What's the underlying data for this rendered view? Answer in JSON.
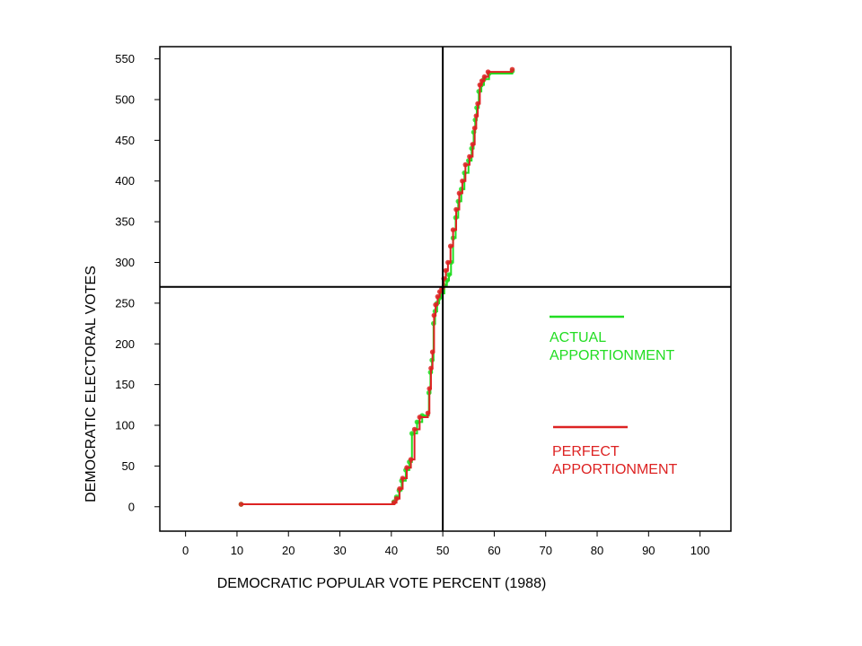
{
  "chart_data": {
    "type": "line",
    "title": "",
    "xlabel": "DEMOCRATIC POPULAR VOTE PERCENT  (1988)",
    "ylabel": "DEMOCRATIC ELECTORAL VOTES",
    "xlim": [
      -5,
      106
    ],
    "ylim": [
      -30,
      565
    ],
    "x_ticks": [
      0,
      10,
      20,
      30,
      40,
      50,
      60,
      70,
      80,
      90,
      100
    ],
    "y_ticks": [
      0,
      50,
      100,
      150,
      200,
      250,
      300,
      350,
      400,
      450,
      500,
      550
    ],
    "grid": false,
    "reference_lines": {
      "x": 50,
      "y": 270
    },
    "legend_position": "right",
    "series": [
      {
        "name": "ACTUAL APPORTIONMENT",
        "color": "#22dd22",
        "x": [
          10.8,
          40.5,
          41.0,
          41.5,
          42.0,
          42.8,
          43.5,
          44.0,
          45.0,
          46.0,
          47.3,
          47.6,
          47.9,
          48.2,
          48.5,
          48.9,
          49.3,
          49.7,
          50.3,
          50.8,
          51.2,
          51.6,
          52.0,
          52.5,
          53.0,
          53.6,
          54.2,
          55.0,
          55.6,
          56.0,
          56.3,
          56.6,
          57.0,
          57.5,
          58.0,
          59.0,
          63.5
        ],
        "y": [
          3,
          6,
          12,
          20,
          32,
          45,
          55,
          90,
          104,
          112,
          140,
          165,
          180,
          225,
          240,
          250,
          256,
          262,
          272,
          278,
          285,
          300,
          330,
          355,
          375,
          390,
          410,
          425,
          440,
          460,
          475,
          490,
          510,
          518,
          525,
          532,
          535
        ]
      },
      {
        "name": "PERFECT APPORTIONMENT",
        "color": "#dd2222",
        "x": [
          10.8,
          40.5,
          41.0,
          41.6,
          42.2,
          43.0,
          43.8,
          44.5,
          45.5,
          47.1,
          47.4,
          47.7,
          48.0,
          48.3,
          48.6,
          49.0,
          49.4,
          49.8,
          50.2,
          50.6,
          51.0,
          51.5,
          52.0,
          52.6,
          53.2,
          53.8,
          54.4,
          55.2,
          55.8,
          56.2,
          56.5,
          56.8,
          57.2,
          57.6,
          58.1,
          58.8,
          63.5
        ],
        "y": [
          3,
          5,
          10,
          22,
          35,
          48,
          58,
          95,
          110,
          115,
          145,
          170,
          190,
          235,
          248,
          258,
          264,
          268,
          280,
          290,
          300,
          320,
          340,
          365,
          385,
          400,
          420,
          430,
          445,
          465,
          480,
          495,
          518,
          523,
          528,
          534,
          537
        ]
      }
    ]
  }
}
